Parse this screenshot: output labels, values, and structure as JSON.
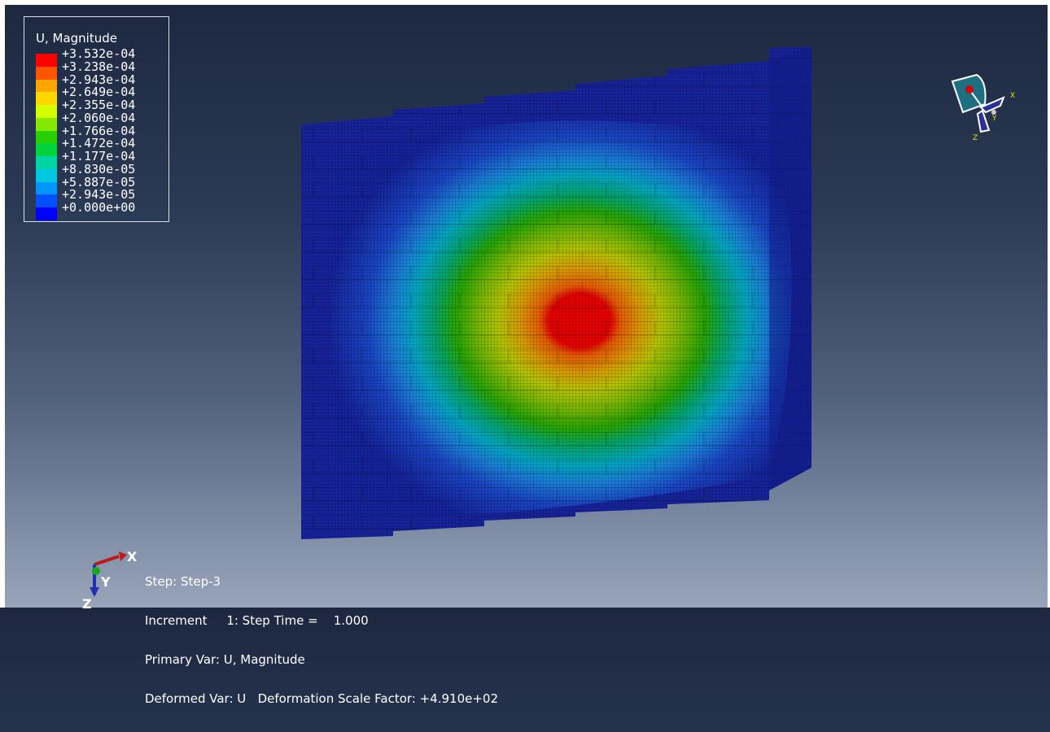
{
  "legend": {
    "title": "U, Magnitude",
    "values": [
      "+3.532e-04",
      "+3.238e-04",
      "+2.943e-04",
      "+2.649e-04",
      "+2.355e-04",
      "+2.060e-04",
      "+1.766e-04",
      "+1.472e-04",
      "+1.177e-04",
      "+8.830e-05",
      "+5.887e-05",
      "+2.943e-05",
      "+0.000e+00"
    ],
    "colors": [
      "#ff0000",
      "#ff5500",
      "#ffa500",
      "#ffd700",
      "#d4ff00",
      "#84e800",
      "#27d000",
      "#00d33b",
      "#00d4a4",
      "#00c7e0",
      "#0096ff",
      "#0050ff",
      "#0000ff"
    ]
  },
  "info": {
    "step": "Step: Step-3",
    "increment": "Increment     1: Step Time =    1.000",
    "primary_var": "Primary Var: U, Magnitude",
    "deformed_var": "Deformed Var: U   Deformation Scale Factor: +4.910e+02"
  },
  "axis_triad": {
    "x": "X",
    "y": "Y",
    "z": "Z"
  },
  "view_triad": {
    "x": "X",
    "y": "Y",
    "z": "Z"
  }
}
